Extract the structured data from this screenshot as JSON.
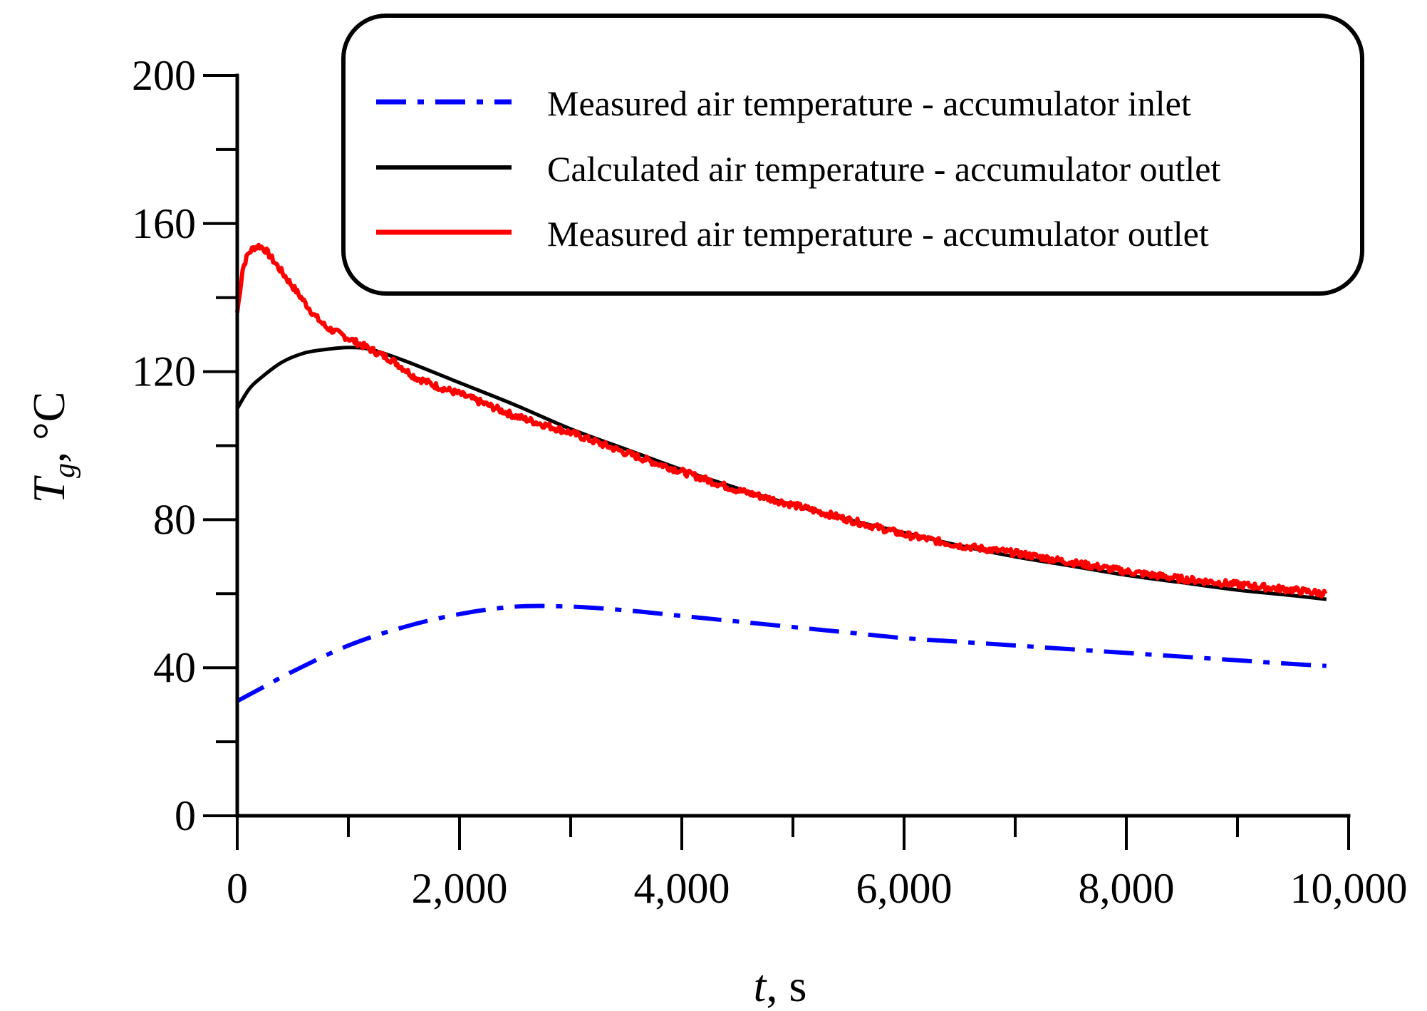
{
  "chart_data": {
    "type": "line",
    "title": "",
    "xlabel": {
      "symbol": "t",
      "unit": ", s"
    },
    "ylabel": {
      "symbol": "T",
      "subscript": "g",
      "unit": ", °C"
    },
    "xlim": [
      0,
      10000
    ],
    "ylim": [
      0,
      200
    ],
    "x_ticks": [
      0,
      2000,
      4000,
      6000,
      8000,
      10000
    ],
    "x_tick_labels": [
      "0",
      "2,000",
      "4,000",
      "6,000",
      "8,000",
      "10,000"
    ],
    "x_minor_step": 1000,
    "y_ticks": [
      0,
      40,
      80,
      120,
      160,
      200
    ],
    "y_tick_labels": [
      "0",
      "40",
      "80",
      "120",
      "160",
      "200"
    ],
    "y_minor_step": 20,
    "grid": false,
    "legend_position": "top-right",
    "series": [
      {
        "name": "Measured air temperature - accumulator inlet",
        "color": "#0000ff",
        "style": "dashdot",
        "x": [
          0,
          250,
          500,
          1000,
          1500,
          2000,
          2500,
          3000,
          3500,
          4000,
          4500,
          5000,
          5500,
          6000,
          6500,
          7000,
          7500,
          8000,
          8500,
          9000,
          9500,
          9800
        ],
        "y": [
          31,
          35,
          39,
          46,
          51,
          54.5,
          56.5,
          56.5,
          55.5,
          54,
          52.5,
          51,
          49.5,
          48,
          47,
          46,
          45,
          44,
          43,
          42,
          41,
          40.5
        ]
      },
      {
        "name": "Calculated air temperature - accumulator outlet",
        "color": "#000000",
        "style": "solid",
        "x": [
          0,
          100,
          200,
          400,
          600,
          800,
          1000,
          1200,
          1500,
          2000,
          2500,
          3000,
          3500,
          4000,
          4500,
          5000,
          5500,
          6000,
          6500,
          7000,
          7500,
          8000,
          8500,
          9000,
          9500,
          9800
        ],
        "y": [
          110,
          115,
          118,
          122.5,
          125,
          126,
          126.5,
          126,
          123,
          117,
          111,
          104.5,
          99,
          93.5,
          88.5,
          84,
          80,
          76.5,
          73,
          70,
          67.5,
          65,
          63,
          61,
          59.5,
          58.5
        ]
      },
      {
        "name": "Measured air temperature - accumulator outlet",
        "color": "#ff0000",
        "style": "solid-noisy",
        "x": [
          0,
          50,
          100,
          150,
          200,
          250,
          300,
          400,
          500,
          600,
          700,
          800,
          900,
          1000,
          1200,
          1400,
          1600,
          1800,
          2000,
          2500,
          3000,
          3500,
          4000,
          4500,
          5000,
          5500,
          6000,
          6500,
          7000,
          7500,
          8000,
          8500,
          9000,
          9500,
          9800
        ],
        "y": [
          136,
          148,
          152,
          153.5,
          154,
          153,
          151,
          147,
          143,
          139,
          135,
          132,
          130.5,
          129,
          126,
          123,
          118.5,
          116,
          114,
          108,
          103.5,
          98,
          93,
          88,
          84,
          80,
          76,
          73,
          71,
          68.5,
          66,
          64,
          62.5,
          61,
          60
        ]
      }
    ]
  }
}
